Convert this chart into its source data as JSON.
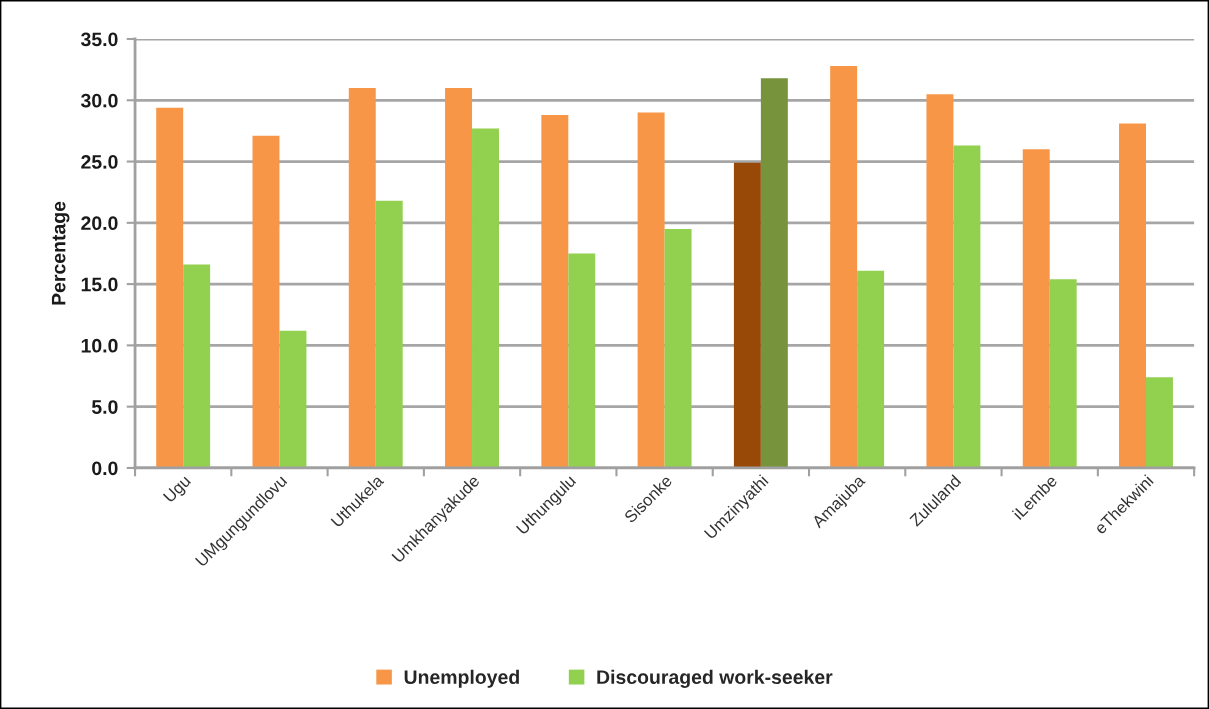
{
  "chart_data": {
    "type": "bar",
    "ylabel": "Percentage",
    "categories": [
      "Ugu",
      "UMgungundlovu",
      "Uthukela",
      "Umkhanyakude",
      "Uthungulu",
      "Sisonke",
      "Umzinyathi",
      "Amajuba",
      "Zululand",
      "iLembe",
      "eThekwini"
    ],
    "series": [
      {
        "name": "Unemployed",
        "color": "#f79646",
        "colors": [
          "#f79646",
          "#f79646",
          "#f79646",
          "#f79646",
          "#f79646",
          "#f79646",
          "#984807",
          "#f79646",
          "#f79646",
          "#f79646",
          "#f79646"
        ],
        "values": [
          29.4,
          27.1,
          31.0,
          31.0,
          28.8,
          29.0,
          24.9,
          32.8,
          30.5,
          26.0,
          28.1
        ]
      },
      {
        "name": "Discouraged work-seeker",
        "color": "#92d050",
        "colors": [
          "#92d050",
          "#92d050",
          "#92d050",
          "#92d050",
          "#92d050",
          "#92d050",
          "#77933c",
          "#92d050",
          "#92d050",
          "#92d050",
          "#92d050"
        ],
        "values": [
          16.6,
          11.2,
          21.8,
          27.7,
          17.5,
          19.5,
          31.8,
          16.1,
          26.3,
          15.4,
          7.4
        ]
      }
    ],
    "ylim": [
      0,
      35
    ],
    "yticks": [
      {
        "value": 0,
        "label": "0.0"
      },
      {
        "value": 5,
        "label": "5.0"
      },
      {
        "value": 10,
        "label": "10.0"
      },
      {
        "value": 15,
        "label": "15.0"
      },
      {
        "value": 20,
        "label": "20.0"
      },
      {
        "value": 25,
        "label": "25.0"
      },
      {
        "value": 30,
        "label": "30.0"
      },
      {
        "value": 35,
        "label": "35.0"
      }
    ],
    "grid": "y",
    "legend": "bottom"
  }
}
